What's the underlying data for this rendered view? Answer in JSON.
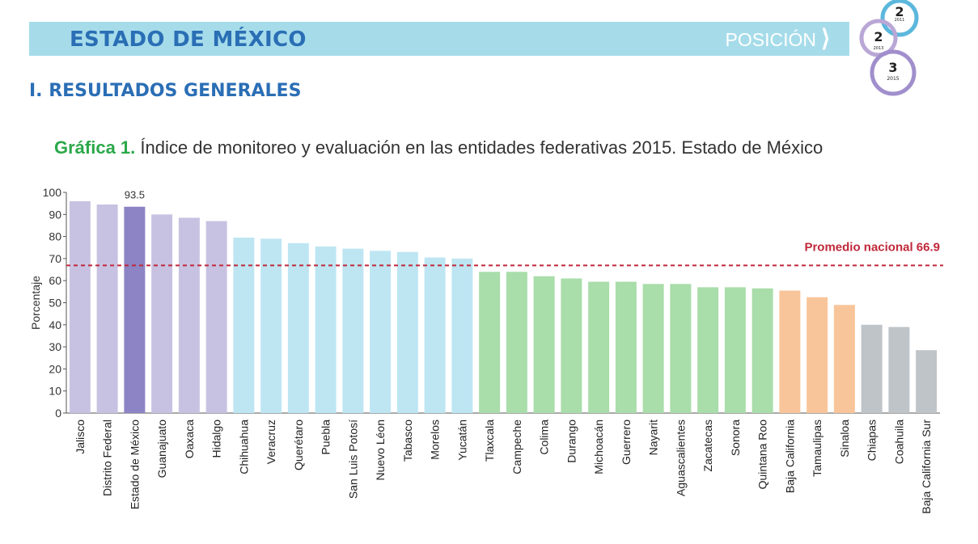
{
  "header": {
    "title": "ESTADO DE MÉXICO",
    "position_label": "POSICIÓN",
    "ranking": [
      {
        "rank": "2",
        "year": "2011",
        "color": "#5bb7dc"
      },
      {
        "rank": "2",
        "year": "2013",
        "color": "#b9a7d6"
      },
      {
        "rank": "3",
        "year": "2015",
        "color": "#a08fcc"
      }
    ]
  },
  "section": {
    "title": "I. RESULTADOS GENERALES"
  },
  "caption": {
    "label": "Gráfica 1.",
    "text": "Índice de monitoreo y evaluación en las entidades federativas 2015. Estado de México"
  },
  "chart_data": {
    "type": "bar",
    "title": "",
    "ylabel": "Porcentaje",
    "xlabel": "",
    "ylim": [
      0,
      100
    ],
    "yticks": [
      0,
      10,
      20,
      30,
      40,
      50,
      60,
      70,
      80,
      90,
      100
    ],
    "categories": [
      "Jalisco",
      "Distrito Federal",
      "Estado de México",
      "Guanajuato",
      "Oaxaca",
      "Hidalgo",
      "Chihuahua",
      "Veracruz",
      "Querétaro",
      "Puebla",
      "San Luis Potosí",
      "Nuevo Léon",
      "Tabasco",
      "Morelos",
      "Yucatán",
      "Tlaxcala",
      "Campeche",
      "Colima",
      "Durango",
      "Michoacán",
      "Guerrero",
      "Nayarit",
      "Aguascalientes",
      "Zacatecas",
      "Sonora",
      "Quintana Roo",
      "Baja California",
      "Tamaulipas",
      "Sinaloa",
      "Chiapas",
      "Coahuila",
      "Baja California Sur"
    ],
    "values": [
      96.0,
      94.5,
      93.5,
      90.0,
      88.5,
      87.0,
      79.5,
      79.0,
      77.0,
      75.5,
      74.5,
      73.5,
      73.0,
      70.5,
      70.0,
      64.0,
      64.0,
      62.0,
      61.0,
      59.5,
      59.5,
      58.5,
      58.5,
      57.0,
      57.0,
      56.5,
      55.5,
      52.5,
      49.0,
      40.0,
      39.0,
      28.5
    ],
    "colors": [
      "#c8c2e2",
      "#c8c2e2",
      "#8c84c4",
      "#c8c2e2",
      "#c8c2e2",
      "#c8c2e2",
      "#bde6f2",
      "#bde6f2",
      "#bde6f2",
      "#bde6f2",
      "#bde6f2",
      "#bde6f2",
      "#bde6f2",
      "#bde6f2",
      "#bde6f2",
      "#a9ddaa",
      "#a9ddaa",
      "#a9ddaa",
      "#a9ddaa",
      "#a9ddaa",
      "#a9ddaa",
      "#a9ddaa",
      "#a9ddaa",
      "#a9ddaa",
      "#a9ddaa",
      "#a9ddaa",
      "#f8c59a",
      "#f8c59a",
      "#f8c59a",
      "#bfc4c8",
      "#bfc4c8",
      "#bfc4c8"
    ],
    "data_labels": [
      {
        "category": "Estado de México",
        "text": "93.5"
      }
    ],
    "reference_line": {
      "value": 66.9,
      "label": "Promedio nacional 66.9",
      "color": "#c0283a",
      "style": "dashed"
    }
  }
}
